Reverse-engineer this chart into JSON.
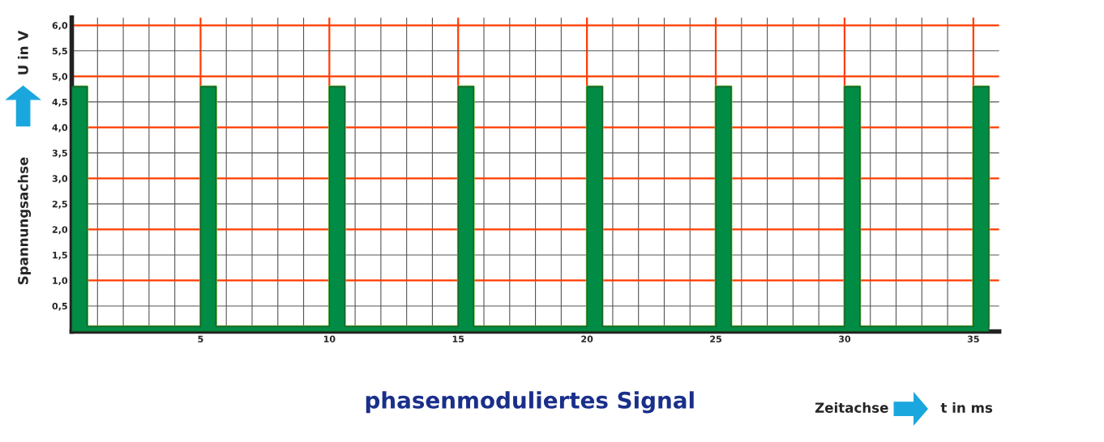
{
  "chart_data": {
    "type": "area",
    "title": "phasenmoduliertes Signal",
    "xlabel": "t in ms",
    "ylabel": "U in V",
    "annotations": [
      "Spannungsachse",
      "Zeitachse"
    ],
    "series": [
      {
        "color": "#008c45",
        "x": [
          0,
          0,
          0.6,
          0.6,
          5,
          5,
          5.6,
          5.6,
          10,
          10,
          10.6,
          10.6,
          15,
          15,
          15.6,
          15.6,
          20,
          20,
          20.6,
          20.6,
          25,
          25,
          25.6,
          25.6,
          30,
          30,
          30.6,
          30.6,
          35,
          35,
          35.6,
          35.6
        ],
        "values": [
          0.1,
          4.8,
          4.8,
          0.1,
          0.1,
          4.8,
          4.8,
          0.1,
          0.1,
          4.8,
          4.8,
          0.1,
          0.1,
          4.8,
          4.8,
          0.1,
          0.1,
          4.8,
          4.8,
          0.1,
          0.1,
          4.8,
          4.8,
          0.1,
          0.1,
          4.8,
          4.8,
          0.1,
          0.1,
          4.8,
          4.8,
          0.1
        ]
      }
    ],
    "xlim": [
      0,
      36
    ],
    "ylim": [
      0,
      6.15
    ],
    "xticks": [
      {
        "value": 1,
        "label": null
      },
      {
        "value": 2,
        "label": null
      },
      {
        "value": 3,
        "label": null
      },
      {
        "value": 4,
        "label": null
      },
      5,
      {
        "value": 6,
        "label": null
      },
      {
        "value": 7,
        "label": null
      },
      {
        "value": 8,
        "label": null
      },
      {
        "value": 9,
        "label": null
      },
      10,
      {
        "value": 11,
        "label": null
      },
      {
        "value": 12,
        "label": null
      },
      {
        "value": 13,
        "label": null
      },
      {
        "value": 14,
        "label": null
      },
      15,
      {
        "value": 16,
        "label": null
      },
      {
        "value": 17,
        "label": null
      },
      {
        "value": 18,
        "label": null
      },
      {
        "value": 19,
        "label": null
      },
      20,
      {
        "value": 21,
        "label": null
      },
      {
        "value": 22,
        "label": null
      },
      {
        "value": 23,
        "label": null
      },
      {
        "value": 24,
        "label": null
      },
      25,
      {
        "value": 26,
        "label": null
      },
      {
        "value": 27,
        "label": null
      },
      {
        "value": 28,
        "label": null
      },
      {
        "value": 29,
        "label": null
      },
      30,
      {
        "value": 31,
        "label": null
      },
      {
        "value": 32,
        "label": null
      },
      {
        "value": 33,
        "label": null
      },
      {
        "value": 34,
        "label": null
      },
      35
    ],
    "yticks": [
      {
        "value": 0.5,
        "label": "0,5"
      },
      {
        "value": 1.0,
        "label": "1,0"
      },
      {
        "value": 1.5,
        "label": "1,5"
      },
      {
        "value": 2.0,
        "label": "2,0"
      },
      {
        "value": 2.5,
        "label": "2,5"
      },
      {
        "value": 3.0,
        "label": "3,0"
      },
      {
        "value": 3.5,
        "label": "3,5"
      },
      {
        "value": 4.0,
        "label": "4,0"
      },
      {
        "value": 4.5,
        "label": "4,5"
      },
      {
        "value": 5.0,
        "label": "5,0"
      },
      {
        "value": 5.5,
        "label": "5,5"
      },
      {
        "value": 6.0,
        "label": "6,0"
      }
    ],
    "grid": true
  }
}
